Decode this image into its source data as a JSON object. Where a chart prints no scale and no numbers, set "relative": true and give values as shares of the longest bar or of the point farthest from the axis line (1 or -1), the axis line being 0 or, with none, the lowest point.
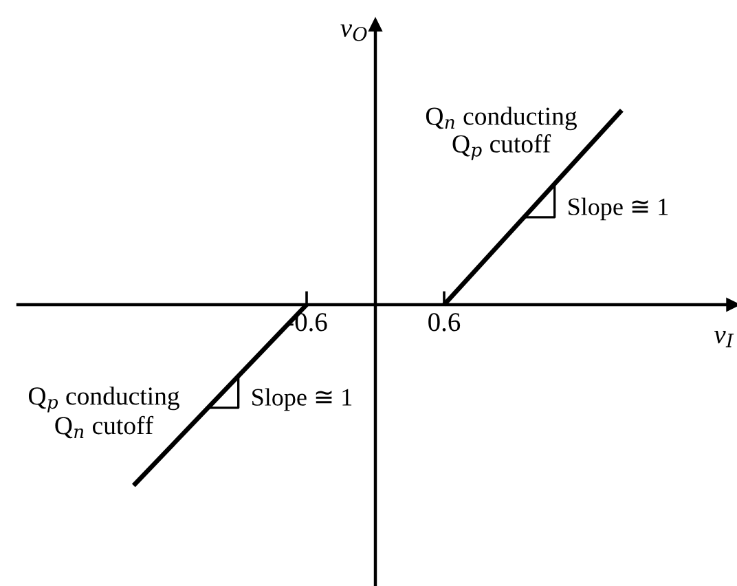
{
  "chart_data": {
    "type": "line",
    "xlabel": "v$_{I}$",
    "ylabel": "v$_{O}$",
    "relative": true,
    "xlim": [
      -3.12,
      3.12
    ],
    "xticks": [
      -0.6,
      0.6
    ],
    "series": [
      {
        "name": "Q$_{n}$ conducting\nQ$_{p}$ cutoff",
        "color": "#000000",
        "x": [
          0.6,
          2.15
        ],
        "values": [
          0,
          1
        ]
      },
      {
        "name": "Q$_{p}$ conducting\nQ$_{n}$ cutoff",
        "color": "#000000",
        "x": [
          -0.6,
          -2.11
        ],
        "values": [
          0,
          -0.93
        ]
      }
    ],
    "annotations": [
      {
        "text": "Slope ≅ 1",
        "x": 1.3,
        "y": 0.45
      },
      {
        "text": "Slope ≅ 1",
        "x": -1.46,
        "y": -0.53
      }
    ],
    "marker": "none",
    "line_style": "solid"
  }
}
